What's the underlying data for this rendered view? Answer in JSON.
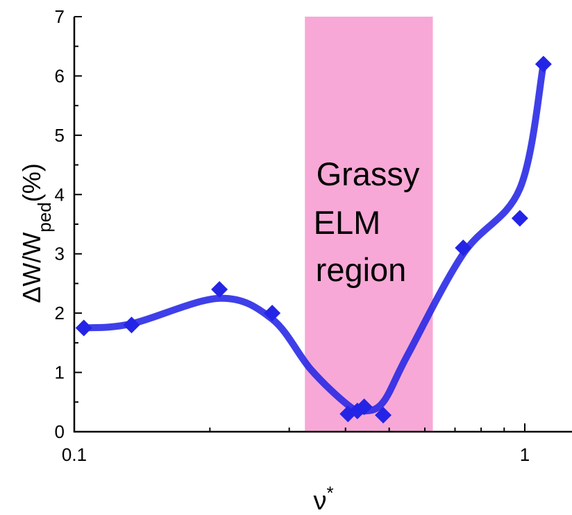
{
  "chart_data": {
    "type": "line",
    "xscale": "log",
    "xlim": [
      0.1,
      1.1
    ],
    "ylim": [
      0,
      7
    ],
    "xticks": [
      0.1,
      1
    ],
    "xtick_labels": [
      "0.1",
      "1"
    ],
    "yticks": [
      0,
      1,
      2,
      3,
      4,
      5,
      6,
      7
    ],
    "ytick_labels": [
      "0",
      "1",
      "2",
      "3",
      "4",
      "5",
      "6",
      "7"
    ],
    "xlabel": "ν*",
    "ylabel": "ΔW/Wped(%)",
    "xlabel_parts": {
      "main": "ν",
      "sup": "*"
    },
    "ylabel_parts": {
      "main": "ΔW/W",
      "sub": "ped",
      "tail": "(%)"
    },
    "grid": false,
    "colors": {
      "series": "#2424e6",
      "band": "#f7a8d6",
      "axis": "#000000"
    },
    "series": [
      {
        "marker": "diamond",
        "x": [
          0.105,
          0.134,
          0.21,
          0.275,
          0.405,
          0.425,
          0.44,
          0.485,
          0.73,
          0.975,
          1.1
        ],
        "y": [
          1.75,
          1.8,
          2.4,
          2.0,
          0.3,
          0.35,
          0.42,
          0.28,
          3.1,
          3.6,
          6.2
        ]
      }
    ],
    "fit_curve": {
      "x": [
        0.105,
        0.134,
        0.21,
        0.275,
        0.335,
        0.405,
        0.44,
        0.485,
        0.55,
        0.73,
        0.975,
        1.1
      ],
      "y": [
        1.75,
        1.82,
        2.25,
        1.9,
        1.05,
        0.45,
        0.35,
        0.5,
        1.3,
        3.0,
        4.1,
        6.2
      ]
    },
    "band": {
      "x_range": [
        0.325,
        0.625
      ]
    },
    "annotation": {
      "lines": [
        "Grassy",
        "ELM",
        "region"
      ]
    }
  }
}
